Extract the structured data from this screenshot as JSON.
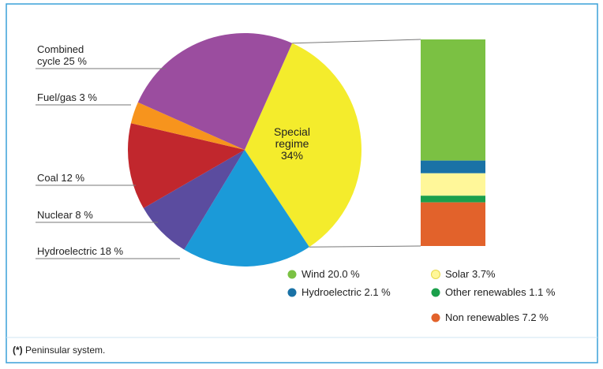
{
  "chart_data": {
    "type": "pie",
    "categories": [
      "Special regime",
      "Hydroelectric",
      "Nuclear",
      "Coal",
      "Fuel/gas",
      "Combined cycle"
    ],
    "values": [
      34,
      18,
      8,
      12,
      3,
      25
    ],
    "value_labels": [
      "34%",
      "18 %",
      "8 %",
      "12 %",
      "3 %",
      "25 %"
    ],
    "colors": [
      "#f4ec2c",
      "#1b9ad8",
      "#5b4c9f",
      "#c1272d",
      "#f7941d",
      "#9b4d9f"
    ],
    "breakdown": {
      "categories": [
        "Wind",
        "Hydroelectric",
        "Solar",
        "Other renewables",
        "Non renewables"
      ],
      "values": [
        20.0,
        2.1,
        3.7,
        1.1,
        7.2
      ],
      "value_labels": [
        "20.0 %",
        "2.1 %",
        "3.7%",
        "1.1 %",
        "7.2 %"
      ],
      "colors": [
        "#7bc143",
        "#1a72a6",
        "#fff799",
        "#1ba04b",
        "#e2622b"
      ]
    },
    "footnote": {
      "marker": "(*)",
      "text": "Peninsular system."
    }
  }
}
